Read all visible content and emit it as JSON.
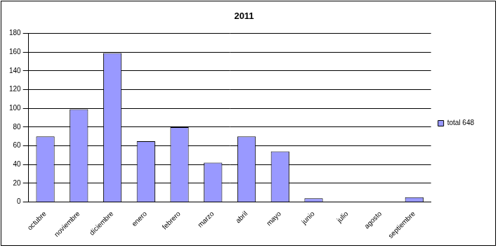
{
  "chart_data": {
    "type": "bar",
    "title": "2011",
    "categories": [
      "octubre",
      "noviembre",
      "diciembre",
      "enero",
      "febrero",
      "marzo",
      "abril",
      "mayo",
      "junio",
      "julio",
      "agosto",
      "septiembre"
    ],
    "series": [
      {
        "name": "total 648",
        "color": "#9999ff",
        "values": [
          70,
          99,
          159,
          65,
          80,
          42,
          70,
          54,
          4,
          0,
          0,
          5
        ]
      }
    ],
    "ylim": [
      0,
      180
    ],
    "yticks": [
      0,
      20,
      40,
      60,
      80,
      100,
      120,
      140,
      160,
      180
    ],
    "grid": true,
    "legend": "right"
  }
}
